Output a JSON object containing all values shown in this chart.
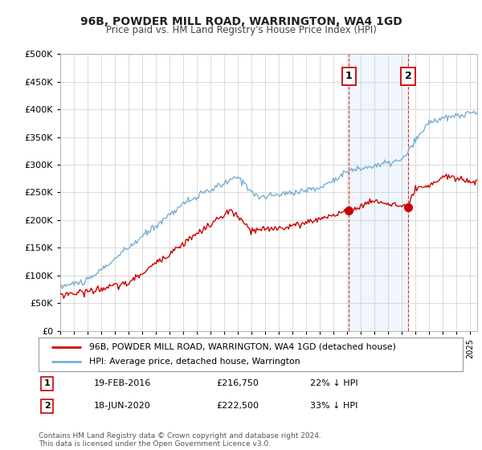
{
  "title": "96B, POWDER MILL ROAD, WARRINGTON, WA4 1GD",
  "subtitle": "Price paid vs. HM Land Registry's House Price Index (HPI)",
  "ylim": [
    0,
    500000
  ],
  "yticks": [
    0,
    50000,
    100000,
    150000,
    200000,
    250000,
    300000,
    350000,
    400000,
    450000,
    500000
  ],
  "sale1_date": "19-FEB-2016",
  "sale1_price": 216750,
  "sale1_year": 2016.12,
  "sale1_hpi_pct": "22% ↓ HPI",
  "sale2_date": "18-JUN-2020",
  "sale2_price": 222500,
  "sale2_year": 2020.46,
  "sale2_hpi_pct": "33% ↓ HPI",
  "legend_label_red": "96B, POWDER MILL ROAD, WARRINGTON, WA4 1GD (detached house)",
  "legend_label_blue": "HPI: Average price, detached house, Warrington",
  "footer": "Contains HM Land Registry data © Crown copyright and database right 2024.\nThis data is licensed under the Open Government Licence v3.0.",
  "line_color_red": "#cc0000",
  "line_color_blue": "#7bafd4",
  "marker_color_red": "#cc0000",
  "shade_color": "#d6e8f7",
  "background_color": "#ffffff",
  "grid_color": "#cccccc",
  "xlim_start": 1995,
  "xlim_end": 2025.5
}
